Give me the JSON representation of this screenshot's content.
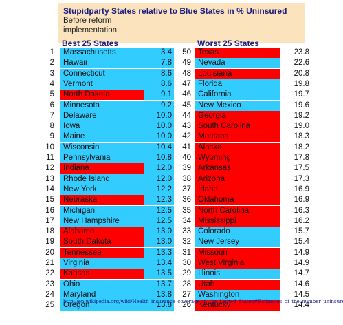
{
  "header": {
    "title": "Stupidparty  States relative to Blue States in  %  Uninsured",
    "subtitle_line1": "Before reform",
    "subtitle_line2": "implementation:"
  },
  "best_heading": "Best 25 States",
  "worst_heading": "Worst 25 States",
  "colors": {
    "blue": "#33ccff",
    "red": "#ff0000",
    "header_bg": "#fbe3bd"
  },
  "best": [
    {
      "rank": "1",
      "state": "Massachusetts",
      "value": "3.4",
      "party": "blue"
    },
    {
      "rank": "2",
      "state": "Hawaii",
      "value": "7.8",
      "party": "blue"
    },
    {
      "rank": "3",
      "state": "Connecticut",
      "value": "8.6",
      "party": "blue"
    },
    {
      "rank": "4",
      "state": "Vermont",
      "value": "8.6",
      "party": "blue"
    },
    {
      "rank": "5",
      "state": "North Dakota",
      "value": "9.1",
      "party": "red"
    },
    {
      "rank": "6",
      "state": "Minnesota",
      "value": "9.2",
      "party": "blue"
    },
    {
      "rank": "7",
      "state": "Delaware",
      "value": "10.0",
      "party": "blue"
    },
    {
      "rank": "8",
      "state": "Iowa",
      "value": "10.0",
      "party": "blue"
    },
    {
      "rank": "9",
      "state": "Maine",
      "value": "10.0",
      "party": "blue"
    },
    {
      "rank": "10",
      "state": "Wisconsin",
      "value": "10.4",
      "party": "blue"
    },
    {
      "rank": "11",
      "state": "Pennsylvania",
      "value": "10.8",
      "party": "blue"
    },
    {
      "rank": "12",
      "state": "Indiana",
      "value": "12.0",
      "party": "red"
    },
    {
      "rank": "13",
      "state": "Rhode Island",
      "value": "12.0",
      "party": "blue"
    },
    {
      "rank": "14",
      "state": "New York",
      "value": "12.2",
      "party": "blue"
    },
    {
      "rank": "15",
      "state": "Nebraska",
      "value": "12.3",
      "party": "red"
    },
    {
      "rank": "16",
      "state": "Michigan",
      "value": "12.5",
      "party": "blue"
    },
    {
      "rank": "17",
      "state": "New Hampshire",
      "value": "12.5",
      "party": "blue"
    },
    {
      "rank": "18",
      "state": "Alabama",
      "value": "13.0",
      "party": "red"
    },
    {
      "rank": "19",
      "state": "South Dakota",
      "value": "13.0",
      "party": "red"
    },
    {
      "rank": "20",
      "state": "Tennessee",
      "value": "13.3",
      "party": "red"
    },
    {
      "rank": "21",
      "state": "Virginia",
      "value": "13.4",
      "party": "blue"
    },
    {
      "rank": "22",
      "state": "Kansas",
      "value": "13.5",
      "party": "red"
    },
    {
      "rank": "23",
      "state": "Ohio",
      "value": "13.7",
      "party": "blue"
    },
    {
      "rank": "24",
      "state": "Maryland",
      "value": "13.8",
      "party": "blue"
    },
    {
      "rank": "25",
      "state": "Oregon",
      "value": "13.8",
      "party": "blue"
    }
  ],
  "worst": [
    {
      "rank": "50",
      "state": "Texas",
      "value": "23.8",
      "party": "red"
    },
    {
      "rank": "49",
      "state": "Nevada",
      "value": "22.6",
      "party": "blue"
    },
    {
      "rank": "48",
      "state": "Louisiana",
      "value": "20.8",
      "party": "red"
    },
    {
      "rank": "47",
      "state": "Florida",
      "value": "19.8",
      "party": "blue"
    },
    {
      "rank": "46",
      "state": "California",
      "value": "19.7",
      "party": "blue"
    },
    {
      "rank": "45",
      "state": "New Mexico",
      "value": "19.6",
      "party": "blue"
    },
    {
      "rank": "44",
      "state": "Georgia",
      "value": "19.2",
      "party": "red"
    },
    {
      "rank": "43",
      "state": "South Carolina",
      "value": "19.0",
      "party": "red"
    },
    {
      "rank": "42",
      "state": "Montana",
      "value": "18.3",
      "party": "red"
    },
    {
      "rank": "41",
      "state": "Alaska",
      "value": "18.2",
      "party": "red"
    },
    {
      "rank": "40",
      "state": "Wyoming",
      "value": "17.8",
      "party": "red"
    },
    {
      "rank": "39",
      "state": "Arkansas",
      "value": "17.5",
      "party": "red"
    },
    {
      "rank": "38",
      "state": "Arizona",
      "value": "17.3",
      "party": "red"
    },
    {
      "rank": "37",
      "state": "Idaho",
      "value": "16.9",
      "party": "red"
    },
    {
      "rank": "36",
      "state": "Oklahoma",
      "value": "16.9",
      "party": "red"
    },
    {
      "rank": "35",
      "state": "North Carolina",
      "value": "16.3",
      "party": "red"
    },
    {
      "rank": "34",
      "state": "Mississippi",
      "value": "16.2",
      "party": "red"
    },
    {
      "rank": "33",
      "state": "Colorado",
      "value": "15.7",
      "party": "blue"
    },
    {
      "rank": "32",
      "state": "New Jersey",
      "value": "15.4",
      "party": "blue"
    },
    {
      "rank": "31",
      "state": "Missouri",
      "value": "14.9",
      "party": "red"
    },
    {
      "rank": "30",
      "state": "West Virginia",
      "value": "14.9",
      "party": "red"
    },
    {
      "rank": "29",
      "state": "Illinois",
      "value": "14.7",
      "party": "blue"
    },
    {
      "rank": "28",
      "state": "Utah",
      "value": "14.6",
      "party": "red"
    },
    {
      "rank": "27",
      "state": "Washington",
      "value": "14.5",
      "party": "blue"
    },
    {
      "rank": "26",
      "state": "Kentucky",
      "value": "14.4",
      "party": "red"
    }
  ],
  "source_url": "http://en.wikipedia.org/wiki/Health_insurance_coverage_in_the_United_States#Estimates_of_the_number_uninsured"
}
